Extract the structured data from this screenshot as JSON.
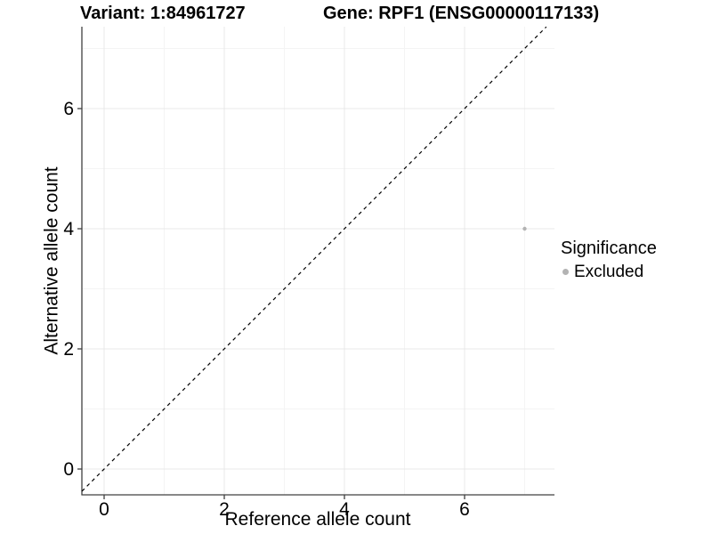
{
  "header": {
    "variant_title": "Variant: 1:84961727",
    "gene_title": "Gene: RPF1 (ENSG00000117133)"
  },
  "axes": {
    "x_label": "Reference allele count",
    "y_label": "Alternative allele count"
  },
  "legend": {
    "title": "Significance",
    "items": [
      {
        "label": "Excluded",
        "color": "#b3b3b3",
        "marker": "dot"
      }
    ]
  },
  "colors": {
    "background": "#ffffff",
    "grid_major": "#e9e9e9",
    "grid_minor": "#f4f4f4",
    "axis_line": "#404040",
    "tick_mark": "#404040",
    "text": "#000000",
    "point": "#b3b3b3",
    "reference_line": "#000000"
  },
  "chart_data": {
    "type": "scatter",
    "title": "Variant: 1:84961727 | Gene: RPF1 (ENSG00000117133)",
    "xlabel": "Reference allele count",
    "ylabel": "Alternative allele count",
    "xlim": [
      -0.37,
      7.5
    ],
    "ylim": [
      -0.43,
      7.36
    ],
    "x_ticks": [
      0,
      2,
      4,
      6
    ],
    "y_ticks": [
      0,
      2,
      4,
      6
    ],
    "x_minor_ticks": [
      1,
      3,
      5,
      7
    ],
    "y_minor_ticks": [
      1,
      3,
      5,
      7
    ],
    "grid": true,
    "legend_position": "right",
    "series": [
      {
        "name": "Excluded",
        "color": "#b3b3b3",
        "points": [
          {
            "x": 7,
            "y": 4
          }
        ]
      }
    ],
    "reference_line": {
      "style": "dashed",
      "equation": "y = x",
      "from": [
        -0.37,
        -0.37
      ],
      "to": [
        7.36,
        7.36
      ]
    }
  }
}
